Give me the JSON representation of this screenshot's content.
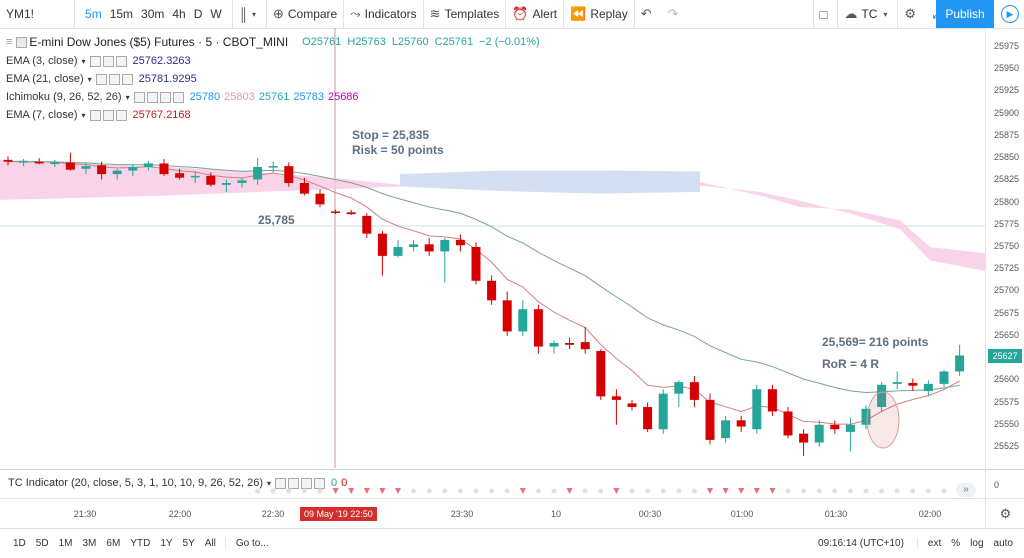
{
  "toolbar": {
    "symbol": "YM1!",
    "timeframes": [
      "5m",
      "15m",
      "30m",
      "4h",
      "D",
      "W"
    ],
    "active_timeframe": "5m",
    "compare": "Compare",
    "indicators": "Indicators",
    "templates": "Templates",
    "alert": "Alert",
    "replay": "Replay",
    "layout": "TC",
    "publish": "Publish"
  },
  "legend": {
    "title": "E-mini Dow Jones ($5) Futures · 5 · CBOT_MINI",
    "ohlc": {
      "o": "O25761",
      "h": "H25763",
      "l": "L25760",
      "c": "C25761",
      "change": "−2 (−0.01%)"
    },
    "ema3": {
      "label": "EMA (3, close)",
      "value": "25762.3263",
      "color": "#2a2e8c"
    },
    "ema21": {
      "label": "EMA (21, close)",
      "value": "25781.9295",
      "color": "#2a2e8c"
    },
    "ichimoku": {
      "label": "Ichimoku (9, 26, 52, 26)",
      "values": [
        "25780",
        "25803",
        "25761",
        "25783",
        "25686"
      ],
      "colors": [
        "#2196f3",
        "#e0a1a1",
        "#26a6a6",
        "#2196f3",
        "#c000c0"
      ]
    },
    "ema7": {
      "label": "EMA (7, close)",
      "value": "25767.2168",
      "color": "#c01818"
    }
  },
  "annotations": {
    "stop": "Stop = 25,835",
    "risk": "Risk = 50 points",
    "entry": "25,785",
    "target": "25,569= 216 points",
    "ror": "RoR = 4 R"
  },
  "price_axis": [
    "25975",
    "25950",
    "25925",
    "25900",
    "25875",
    "25850",
    "25825",
    "25800",
    "25775",
    "25750",
    "25725",
    "25700",
    "25675",
    "25650",
    "25625",
    "25600",
    "25575",
    "25550",
    "25525"
  ],
  "current_price": "25627",
  "time_axis": [
    "21:30",
    "22:00",
    "22:30",
    "23:30",
    "10",
    "00:30",
    "01:00",
    "01:30",
    "02:00"
  ],
  "cursor_time": "09 May '19  22:50",
  "tc_indicator": {
    "label": "TC Indicator (20, close, 5, 3, 1, 10, 10, 9, 26, 52, 26)",
    "values": [
      "0",
      "0"
    ],
    "axis": "0"
  },
  "bottom_bar": {
    "ranges": [
      "1D",
      "5D",
      "1M",
      "3M",
      "6M",
      "YTD",
      "1Y",
      "5Y",
      "All"
    ],
    "goto": "Go to...",
    "clock": "09:16:14 (UTC+10)",
    "ext": "ext",
    "pct": "%",
    "log": "log",
    "auto": "auto"
  },
  "chart_data": {
    "type": "candlestick",
    "symbol": "YM1!",
    "ylim": [
      25510,
      25990
    ],
    "colors": {
      "up": "#26a69a",
      "down": "#d50000",
      "ema7": "#d08080",
      "ema21": "#7aa58a",
      "cloud_bear": "#f7c9e3",
      "cloud_bull": "#c9d8ee"
    },
    "candles": [
      {
        "o": 25848,
        "h": 25852,
        "l": 25842,
        "c": 25846
      },
      {
        "o": 25845,
        "h": 25849,
        "l": 25841,
        "c": 25847
      },
      {
        "o": 25846,
        "h": 25850,
        "l": 25843,
        "c": 25844
      },
      {
        "o": 25844,
        "h": 25848,
        "l": 25840,
        "c": 25845
      },
      {
        "o": 25845,
        "h": 25856,
        "l": 25836,
        "c": 25837
      },
      {
        "o": 25838,
        "h": 25845,
        "l": 25832,
        "c": 25841
      },
      {
        "o": 25842,
        "h": 25846,
        "l": 25826,
        "c": 25832
      },
      {
        "o": 25832,
        "h": 25838,
        "l": 25826,
        "c": 25836
      },
      {
        "o": 25836,
        "h": 25843,
        "l": 25830,
        "c": 25840
      },
      {
        "o": 25840,
        "h": 25847,
        "l": 25836,
        "c": 25844
      },
      {
        "o": 25844,
        "h": 25849,
        "l": 25830,
        "c": 25832
      },
      {
        "o": 25833,
        "h": 25838,
        "l": 25826,
        "c": 25828
      },
      {
        "o": 25829,
        "h": 25835,
        "l": 25822,
        "c": 25830
      },
      {
        "o": 25830,
        "h": 25834,
        "l": 25818,
        "c": 25820
      },
      {
        "o": 25820,
        "h": 25826,
        "l": 25812,
        "c": 25822
      },
      {
        "o": 25822,
        "h": 25828,
        "l": 25817,
        "c": 25825
      },
      {
        "o": 25826,
        "h": 25850,
        "l": 25820,
        "c": 25840
      },
      {
        "o": 25840,
        "h": 25846,
        "l": 25834,
        "c": 25841
      },
      {
        "o": 25841,
        "h": 25845,
        "l": 25818,
        "c": 25822
      },
      {
        "o": 25822,
        "h": 25828,
        "l": 25808,
        "c": 25810
      },
      {
        "o": 25810,
        "h": 25815,
        "l": 25795,
        "c": 25798
      },
      {
        "o": 25790,
        "h": 25792,
        "l": 25787,
        "c": 25789
      },
      {
        "o": 25789,
        "h": 25792,
        "l": 25786,
        "c": 25787
      },
      {
        "o": 25785,
        "h": 25788,
        "l": 25760,
        "c": 25765
      },
      {
        "o": 25765,
        "h": 25768,
        "l": 25718,
        "c": 25740
      },
      {
        "o": 25740,
        "h": 25758,
        "l": 25738,
        "c": 25750
      },
      {
        "o": 25750,
        "h": 25758,
        "l": 25745,
        "c": 25753
      },
      {
        "o": 25753,
        "h": 25760,
        "l": 25740,
        "c": 25745
      },
      {
        "o": 25745,
        "h": 25760,
        "l": 25710,
        "c": 25758
      },
      {
        "o": 25758,
        "h": 25764,
        "l": 25745,
        "c": 25752
      },
      {
        "o": 25750,
        "h": 25755,
        "l": 25708,
        "c": 25712
      },
      {
        "o": 25712,
        "h": 25718,
        "l": 25685,
        "c": 25690
      },
      {
        "o": 25690,
        "h": 25700,
        "l": 25650,
        "c": 25655
      },
      {
        "o": 25655,
        "h": 25690,
        "l": 25650,
        "c": 25680
      },
      {
        "o": 25680,
        "h": 25685,
        "l": 25630,
        "c": 25638
      },
      {
        "o": 25638,
        "h": 25645,
        "l": 25630,
        "c": 25642
      },
      {
        "o": 25642,
        "h": 25648,
        "l": 25635,
        "c": 25640
      },
      {
        "o": 25643,
        "h": 25660,
        "l": 25630,
        "c": 25635
      },
      {
        "o": 25633,
        "h": 25635,
        "l": 25578,
        "c": 25582
      },
      {
        "o": 25582,
        "h": 25590,
        "l": 25550,
        "c": 25578
      },
      {
        "o": 25574,
        "h": 25578,
        "l": 25566,
        "c": 25570
      },
      {
        "o": 25570,
        "h": 25575,
        "l": 25542,
        "c": 25545
      },
      {
        "o": 25545,
        "h": 25590,
        "l": 25540,
        "c": 25585
      },
      {
        "o": 25585,
        "h": 25600,
        "l": 25570,
        "c": 25598
      },
      {
        "o": 25598,
        "h": 25605,
        "l": 25570,
        "c": 25578
      },
      {
        "o": 25578,
        "h": 25585,
        "l": 25528,
        "c": 25533
      },
      {
        "o": 25535,
        "h": 25560,
        "l": 25530,
        "c": 25555
      },
      {
        "o": 25555,
        "h": 25560,
        "l": 25542,
        "c": 25548
      },
      {
        "o": 25545,
        "h": 25595,
        "l": 25540,
        "c": 25590
      },
      {
        "o": 25590,
        "h": 25595,
        "l": 25560,
        "c": 25565
      },
      {
        "o": 25565,
        "h": 25570,
        "l": 25535,
        "c": 25538
      },
      {
        "o": 25540,
        "h": 25545,
        "l": 25515,
        "c": 25530
      },
      {
        "o": 25530,
        "h": 25555,
        "l": 25525,
        "c": 25550
      },
      {
        "o": 25550,
        "h": 25555,
        "l": 25540,
        "c": 25545
      },
      {
        "o": 25542,
        "h": 25558,
        "l": 25520,
        "c": 25550
      },
      {
        "o": 25550,
        "h": 25572,
        "l": 25545,
        "c": 25568
      },
      {
        "o": 25570,
        "h": 25598,
        "l": 25565,
        "c": 25595
      },
      {
        "o": 25596,
        "h": 25610,
        "l": 25590,
        "c": 25598
      },
      {
        "o": 25597,
        "h": 25602,
        "l": 25588,
        "c": 25594
      },
      {
        "o": 25588,
        "h": 25600,
        "l": 25582,
        "c": 25596
      },
      {
        "o": 25596,
        "h": 25612,
        "l": 25592,
        "c": 25610
      },
      {
        "o": 25610,
        "h": 25640,
        "l": 25605,
        "c": 25628
      }
    ]
  }
}
